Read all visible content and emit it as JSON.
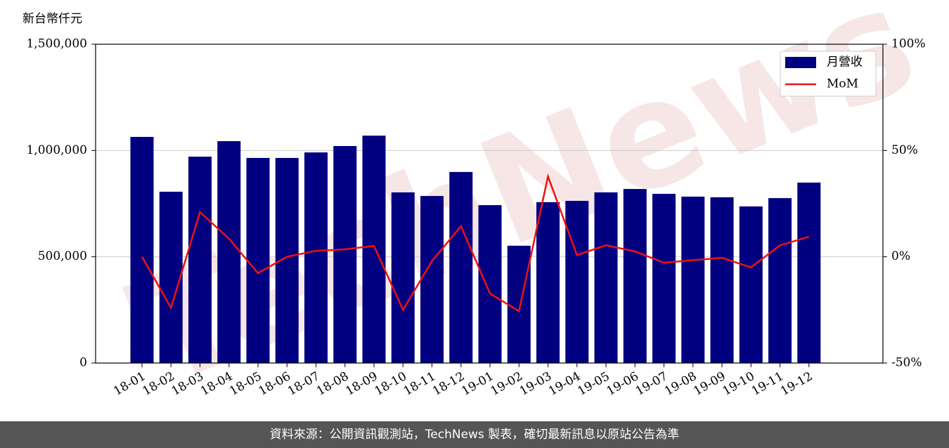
{
  "chart_data": {
    "type": "bar_line",
    "y_axis_label": "新台幣仟元",
    "watermark": "TechNews",
    "footer": "資料來源：公開資訊觀測站，TechNews 製表，確切最新訊息以原站公告為準",
    "categories": [
      "18-01",
      "18-02",
      "18-03",
      "18-04",
      "18-05",
      "18-06",
      "18-07",
      "18-08",
      "18-09",
      "18-10",
      "18-11",
      "18-12",
      "19-01",
      "19-02",
      "19-03",
      "19-04",
      "19-05",
      "19-06",
      "19-07",
      "19-08",
      "19-09",
      "19-10",
      "19-11",
      "19-12"
    ],
    "series": [
      {
        "name": "月營收",
        "type": "bar",
        "color": "#000080",
        "values": [
          1064000,
          806000,
          971000,
          1044000,
          965000,
          965000,
          991000,
          1021000,
          1070000,
          803000,
          786000,
          899000,
          743000,
          552000,
          757000,
          763000,
          803000,
          819000,
          796000,
          783000,
          780000,
          737000,
          776000,
          849000
        ]
      },
      {
        "name": "MoM",
        "type": "line",
        "axis": "y2",
        "color": "#ee1111",
        "values": [
          0,
          -24,
          21,
          8.5,
          -7.7,
          0,
          2.8,
          3.5,
          5.1,
          -25,
          -2,
          14.4,
          -17.3,
          -25.6,
          37.8,
          0.8,
          5.4,
          2.5,
          -2.8,
          -1.6,
          -0.5,
          -5,
          5.4,
          9.4
        ]
      }
    ],
    "ylim": [
      0,
      1500000
    ],
    "yticks": [
      0,
      {
        "value": 500000,
        "label": "500,000"
      },
      {
        "value": 1000000,
        "label": "1,000,000"
      },
      {
        "value": 1500000,
        "label": "1,500,000"
      }
    ],
    "y2lim": [
      -50,
      100
    ],
    "y2ticks": [
      {
        "value": -50,
        "label": "-50%"
      },
      {
        "value": 0,
        "label": "0%"
      },
      {
        "value": 50,
        "label": "50%"
      },
      {
        "value": 100,
        "label": "100%"
      }
    ],
    "grid": true,
    "legend": "upper-right"
  }
}
